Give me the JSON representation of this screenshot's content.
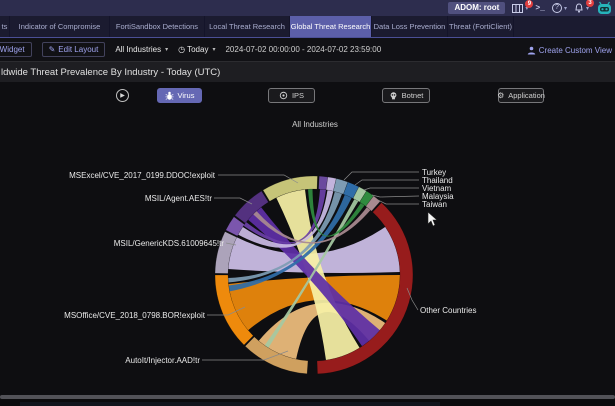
{
  "topbar": {
    "adom_badge": "ADOM: root",
    "task_badge_count": "9",
    "notification_badge_count": "3",
    "cli_glyph": ">_",
    "help_glyph": "?"
  },
  "tabs": [
    {
      "label": "ts"
    },
    {
      "label": "Indicator of Compromise"
    },
    {
      "label": "FortiSandbox Detections"
    },
    {
      "label": "Local Threat Research"
    },
    {
      "label": "Global Threat Research"
    },
    {
      "label": "Data Loss Prevention"
    },
    {
      "label": "Threat (FortiClient)"
    }
  ],
  "toolbar": {
    "add_widget_label": "d Widget",
    "edit_layout_label": "Edit Layout",
    "edit_icon": "✎",
    "industry_filter": "All Industries",
    "clock_icon": "◷",
    "time_filter": "Today",
    "caret": "▾",
    "date_range": "2024-07-02 00:00:00 - 2024-07-02 23:59:00",
    "create_custom_view_label": "Create Custom View"
  },
  "panel": {
    "title": "ldwide Threat Prevalence By Industry - Today (UTC)"
  },
  "controls": {
    "play_glyph": "▶",
    "gear_glyph": "⚙",
    "buttons": [
      {
        "label": "Virus",
        "active": true
      },
      {
        "label": "IPS",
        "active": false
      },
      {
        "label": "Botnet",
        "active": false
      },
      {
        "label": "Application",
        "active": false
      }
    ]
  },
  "chart_data": {
    "type": "chord",
    "title": "All Industries",
    "legend_position": "none",
    "left_labels": [
      "MSExcel/CVE_2017_0199.DDOC!exploit",
      "MSIL/Agent.AES!tr",
      "MSIL/GenericKDS.61009645!tr",
      "MSOffice/CVE_2018_0798.BOR!exploit",
      "AutoIt/Injector.AAD!tr"
    ],
    "right_labels": [
      "Turkey",
      "Thailand",
      "Vietnam",
      "Malaysia",
      "Taiwan",
      "Other Countries"
    ],
    "center": [
      314,
      275
    ],
    "outer_radius": 99,
    "inner_radius": 86,
    "arcs": [
      {
        "name": "MSExcel/CVE_2017_0199.DDOC!exploit",
        "from": -31,
        "to": 2,
        "color": "#c6c478"
      },
      {
        "name": "MSIL/Agent.AES!tr",
        "from": -53,
        "to": -32,
        "color": "#53317f"
      },
      {
        "name": "",
        "from": -63,
        "to": -54,
        "color": "#7b56ad"
      },
      {
        "name": "MSIL/GenericKDS.61009645!tr",
        "from": -89,
        "to": -64,
        "color": "#aca3ba"
      },
      {
        "name": "MSOffice/CVE_2018_0798.BOR!exploit",
        "from": -135,
        "to": -90,
        "color": "#ee8a0c"
      },
      {
        "name": "AutoIt/Injector.AAD!tr",
        "from": -176,
        "to": -136,
        "color": "#cfa05f"
      },
      {
        "name": "",
        "from": 3,
        "to": 8,
        "color": "#6a4a9e"
      },
      {
        "name": "",
        "from": 8,
        "to": 13,
        "color": "#c3b4dd"
      },
      {
        "name": "Turkey",
        "from": 13,
        "to": 20,
        "color": "#7d9cb4"
      },
      {
        "name": "Thailand",
        "from": 20,
        "to": 27,
        "color": "#2f6da8"
      },
      {
        "name": "Vietnam",
        "from": 27,
        "to": 32,
        "color": "#a5c8a1"
      },
      {
        "name": "Malaysia",
        "from": 32,
        "to": 37,
        "color": "#2f8b3e"
      },
      {
        "name": "Taiwan",
        "from": 37,
        "to": 42,
        "color": "#a88a90"
      },
      {
        "name": "Other Countries",
        "from": 43,
        "to": 178,
        "color": "#971c1c"
      }
    ],
    "ribbons": [
      {
        "from": [
          -86,
          -64
        ],
        "to": [
          56,
          88
        ],
        "color": "#cdbfe8"
      },
      {
        "from": [
          -130,
          -96
        ],
        "to": [
          90,
          122
        ],
        "color": "#ee8a0c"
      },
      {
        "from": [
          -168,
          -140
        ],
        "to": [
          124,
          140
        ],
        "color": "#eebd7d"
      },
      {
        "from": [
          -26,
          -6
        ],
        "to": [
          148,
          172
        ],
        "color": "#f6f0a6"
      },
      {
        "from": [
          -50,
          -38
        ],
        "to": [
          130,
          146
        ],
        "color": "#5e2ea6"
      },
      {
        "from": [
          -62,
          -56
        ],
        "to": [
          9,
          13
        ],
        "color": "#c9bae4"
      },
      {
        "from": [
          -55,
          -52
        ],
        "to": [
          4,
          8
        ],
        "color": "#6a3fa8"
      },
      {
        "from": [
          -95,
          -92
        ],
        "to": [
          14,
          19
        ],
        "color": "#7d9cb4"
      },
      {
        "from": [
          -101,
          -97
        ],
        "to": [
          21,
          26
        ],
        "color": "#2f6da8"
      },
      {
        "from": [
          -148,
          -145
        ],
        "to": [
          28,
          31
        ],
        "color": "#a5c8a1"
      },
      {
        "from": [
          -4,
          -1
        ],
        "to": [
          33,
          36
        ],
        "color": "#2f8b3e"
      },
      {
        "from": [
          -45,
          -42
        ],
        "to": [
          38,
          41
        ],
        "color": "#a88a90"
      }
    ]
  },
  "colors": {
    "accent": "#5c5fa9",
    "link": "#9fa3ee",
    "badge_red": "#e03e3e",
    "robot_teal": "#26b3ba"
  }
}
